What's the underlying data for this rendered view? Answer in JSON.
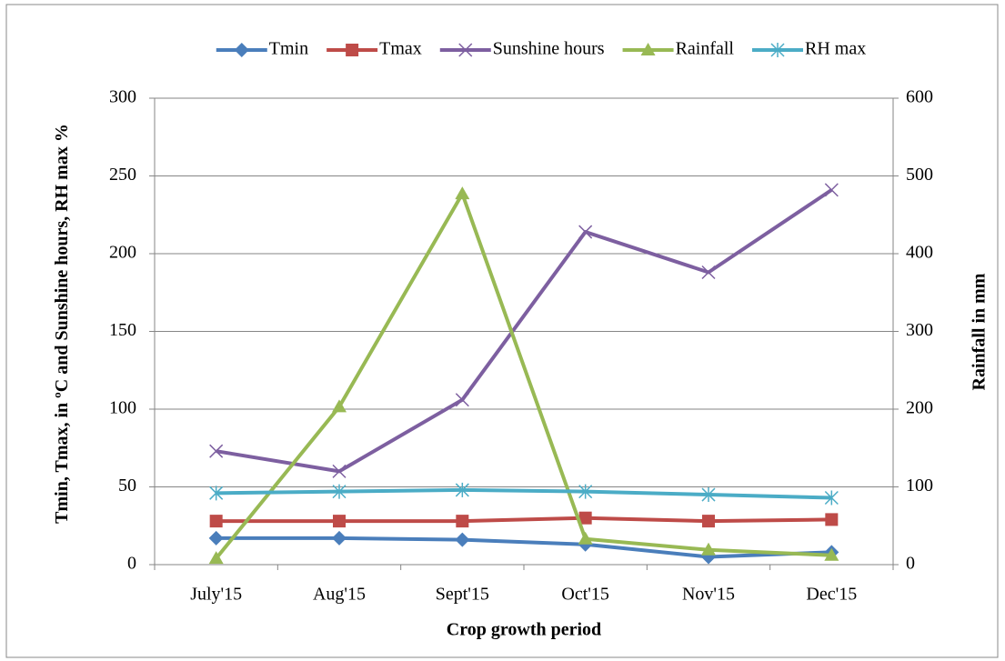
{
  "chart_data": {
    "type": "line",
    "categories": [
      "July'15",
      "Aug'15",
      "Sept'15",
      "Oct'15",
      "Nov'15",
      "Dec'15"
    ],
    "series": [
      {
        "name": "Tmin",
        "color": "#4a7ebb",
        "marker": "diamond",
        "values": [
          17,
          17,
          16,
          13,
          5,
          8
        ]
      },
      {
        "name": "Tmax",
        "color": "#be4b48",
        "marker": "square",
        "values": [
          28,
          28,
          28,
          30,
          28,
          29
        ]
      },
      {
        "name": "Sunshine hours",
        "color": "#7d5fa0",
        "marker": "x",
        "values": [
          73,
          60,
          106,
          214,
          188,
          241
        ]
      },
      {
        "name": "Rainfall",
        "color": "#98b954",
        "marker": "triangle",
        "axis": "y2",
        "values": [
          8,
          203,
          477,
          33,
          19,
          12
        ]
      },
      {
        "name": "RH max",
        "color": "#4bacc6",
        "marker": "star",
        "values": [
          46,
          47,
          48,
          47,
          45,
          43
        ]
      }
    ],
    "xlabel": "Crop growth period",
    "ylabel": "Tmin, Tmax, in ºC and Sunshine hours, RH max %",
    "y2label": "Rainfall in mm",
    "ylim": [
      0,
      300
    ],
    "yticks": [
      0,
      50,
      100,
      150,
      200,
      250,
      300
    ],
    "y2lim": [
      0,
      600
    ],
    "y2ticks": [
      0,
      100,
      200,
      300,
      400,
      500,
      600
    ],
    "grid": true,
    "legend": "top"
  }
}
